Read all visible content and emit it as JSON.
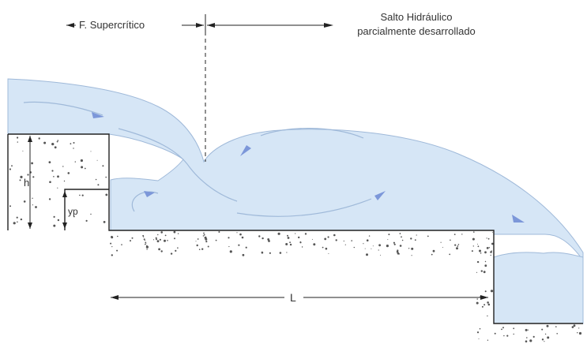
{
  "labels": {
    "supercritical": "F. Supercrítico",
    "hydraulic_jump_line1": "Salto Hidráulico",
    "hydraulic_jump_line2": "parcialmente desarrollado",
    "h": "h",
    "yp": "yp",
    "length": "L"
  },
  "colors": {
    "water_fill": "#d6e6f6",
    "water_edge": "#9fb9d9",
    "flow_arrow": "#7c97d9",
    "line": "#222222",
    "concrete_dots": "#555555"
  }
}
